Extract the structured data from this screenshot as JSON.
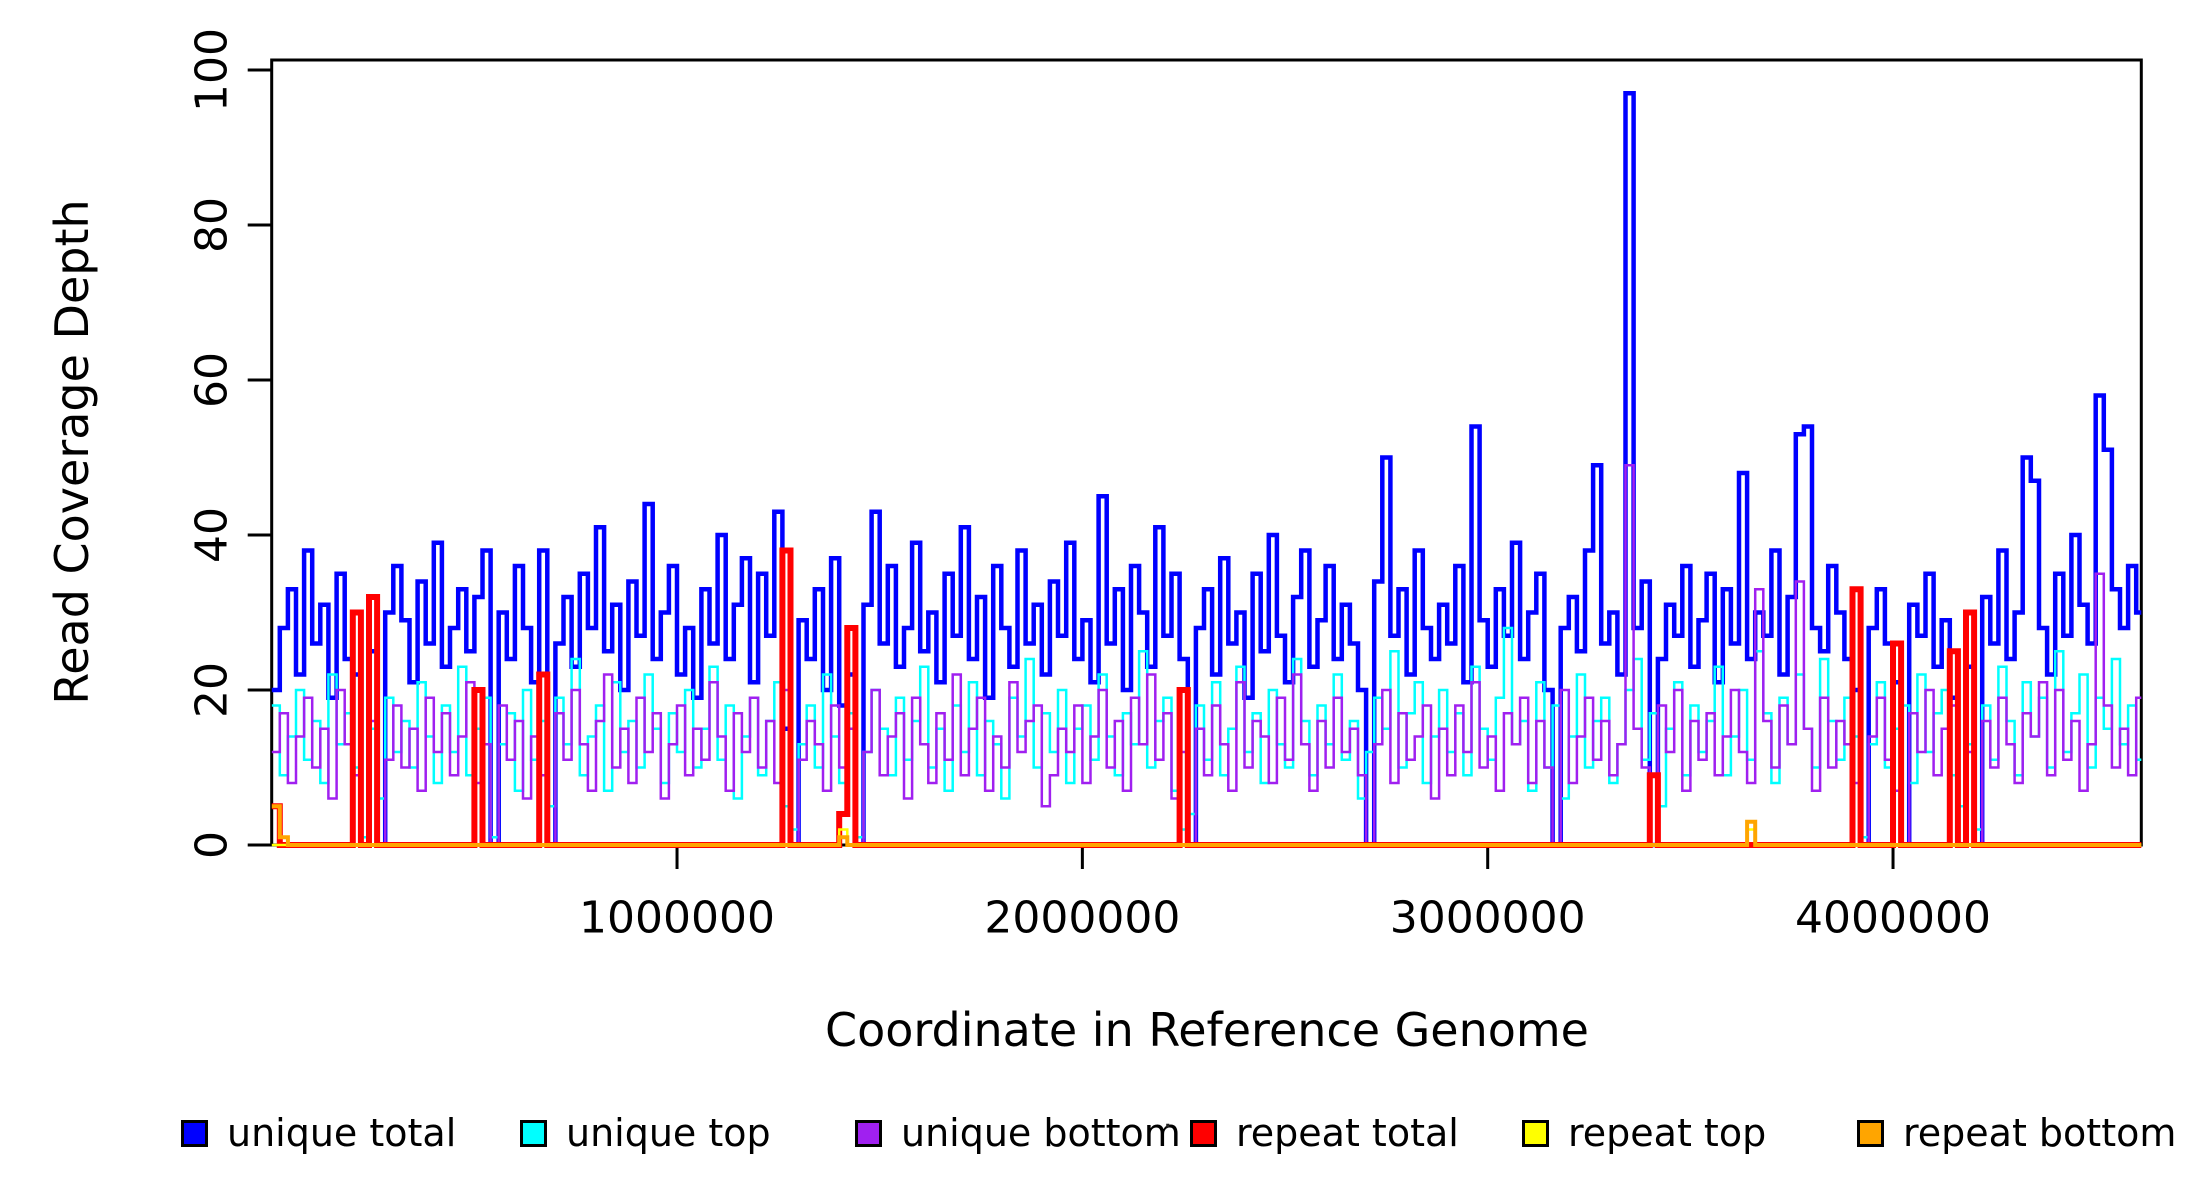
{
  "figure": {
    "background": "#FFFFFF"
  },
  "chart_data": {
    "type": "line",
    "subtype": "step-coverage-plot",
    "title": "",
    "xlabel": "Coordinate in Reference Genome",
    "ylabel": "Read Coverage Depth",
    "xlim": [
      0,
      4640000
    ],
    "ylim": [
      0,
      100
    ],
    "grid": "off",
    "box": "full",
    "x_ticks": [
      {
        "value": 1000000,
        "label": "1000000"
      },
      {
        "value": 2000000,
        "label": "2000000"
      },
      {
        "value": 3000000,
        "label": "3000000"
      },
      {
        "value": 4000000,
        "label": "4000000"
      }
    ],
    "y_ticks": [
      {
        "value": 0,
        "label": "0"
      },
      {
        "value": 20,
        "label": "20"
      },
      {
        "value": 40,
        "label": "40"
      },
      {
        "value": 60,
        "label": "60"
      },
      {
        "value": 80,
        "label": "80"
      },
      {
        "value": 100,
        "label": "100"
      }
    ],
    "bin_size": 20000,
    "x_start": 0,
    "series": [
      {
        "name": "unique total",
        "color": "#0000FF",
        "line_width": 4.5,
        "values": [
          20,
          28,
          33,
          22,
          38,
          26,
          31,
          19,
          35,
          24,
          22,
          0,
          25,
          0,
          30,
          36,
          29,
          21,
          34,
          26,
          39,
          23,
          28,
          33,
          25,
          32,
          38,
          0,
          30,
          24,
          36,
          28,
          21,
          38,
          0,
          26,
          32,
          23,
          35,
          28,
          41,
          25,
          31,
          20,
          34,
          27,
          44,
          24,
          30,
          36,
          22,
          28,
          19,
          33,
          26,
          40,
          24,
          31,
          37,
          21,
          35,
          27,
          43,
          15,
          0,
          29,
          24,
          33,
          20,
          37,
          18,
          22,
          0,
          31,
          43,
          26,
          36,
          23,
          28,
          39,
          25,
          30,
          21,
          35,
          27,
          41,
          24,
          32,
          19,
          36,
          28,
          23,
          38,
          26,
          31,
          22,
          34,
          27,
          39,
          24,
          29,
          21,
          45,
          26,
          33,
          20,
          36,
          30,
          23,
          41,
          27,
          35,
          24,
          0,
          28,
          33,
          22,
          37,
          26,
          30,
          19,
          35,
          25,
          40,
          27,
          21,
          32,
          38,
          23,
          29,
          36,
          24,
          31,
          26,
          20,
          0,
          34,
          50,
          27,
          33,
          22,
          38,
          28,
          24,
          31,
          26,
          36,
          21,
          54,
          29,
          23,
          33,
          27,
          39,
          24,
          30,
          35,
          20,
          0,
          28,
          32,
          25,
          38,
          49,
          26,
          30,
          22,
          97,
          28,
          34,
          0,
          24,
          31,
          27,
          36,
          23,
          29,
          35,
          21,
          33,
          26,
          48,
          24,
          30,
          27,
          38,
          22,
          32,
          53,
          54,
          28,
          25,
          36,
          30,
          24,
          20,
          0,
          28,
          33,
          26,
          21,
          0,
          31,
          27,
          35,
          23,
          29,
          19,
          0,
          23,
          0,
          32,
          26,
          38,
          24,
          30,
          50,
          47,
          28,
          22,
          35,
          27,
          40,
          31,
          26,
          58,
          51,
          33,
          28,
          36,
          30,
          25
        ]
      },
      {
        "name": "unique top",
        "color": "#00FFFF",
        "line_width": 2.5,
        "values": [
          18,
          9,
          14,
          20,
          11,
          16,
          8,
          22,
          13,
          17,
          10,
          1,
          15,
          6,
          19,
          12,
          16,
          10,
          21,
          14,
          8,
          18,
          12,
          23,
          9,
          15,
          19,
          1,
          13,
          17,
          7,
          20,
          11,
          16,
          5,
          19,
          13,
          24,
          9,
          14,
          18,
          7,
          21,
          12,
          16,
          10,
          22,
          15,
          8,
          17,
          12,
          20,
          10,
          15,
          23,
          11,
          18,
          6,
          14,
          19,
          9,
          16,
          21,
          5,
          2,
          13,
          18,
          10,
          22,
          14,
          8,
          17,
          1,
          12,
          20,
          15,
          9,
          19,
          11,
          16,
          23,
          10,
          15,
          7,
          18,
          12,
          21,
          9,
          16,
          13,
          6,
          19,
          14,
          24,
          10,
          17,
          12,
          20,
          8,
          15,
          18,
          11,
          22,
          14,
          9,
          17,
          13,
          25,
          10,
          16,
          19,
          7,
          2,
          4,
          18,
          11,
          21,
          9,
          15,
          23,
          12,
          17,
          8,
          20,
          13,
          10,
          24,
          16,
          9,
          18,
          13,
          22,
          11,
          16,
          6,
          12,
          19,
          15,
          25,
          10,
          17,
          21,
          8,
          14,
          20,
          12,
          17,
          9,
          23,
          15,
          11,
          19,
          28,
          13,
          16,
          7,
          21,
          10,
          18,
          6,
          14,
          22,
          10,
          16,
          19,
          8,
          13,
          20,
          24,
          11,
          17,
          5,
          15,
          21,
          9,
          18,
          12,
          16,
          23,
          9,
          14,
          20,
          11,
          25,
          17,
          8,
          19,
          13,
          22,
          15,
          10,
          24,
          16,
          11,
          19,
          14,
          1,
          13,
          21,
          10,
          15,
          18,
          8,
          22,
          12,
          17,
          20,
          9,
          5,
          13,
          2,
          18,
          11,
          23,
          16,
          9,
          21,
          14,
          19,
          10,
          25,
          12,
          17,
          22,
          10,
          19,
          15,
          24,
          13,
          18,
          11,
          16
        ]
      },
      {
        "name": "unique bottom",
        "color": "#A020F0",
        "line_width": 2.5,
        "values": [
          12,
          17,
          8,
          14,
          19,
          10,
          15,
          6,
          20,
          13,
          9,
          0,
          16,
          0,
          11,
          18,
          10,
          15,
          7,
          19,
          12,
          17,
          9,
          14,
          21,
          8,
          13,
          0,
          18,
          11,
          16,
          6,
          14,
          9,
          0,
          17,
          11,
          20,
          13,
          7,
          16,
          22,
          10,
          15,
          8,
          19,
          12,
          17,
          6,
          13,
          18,
          9,
          15,
          11,
          21,
          14,
          7,
          17,
          12,
          19,
          10,
          16,
          8,
          20,
          0,
          11,
          16,
          13,
          7,
          18,
          10,
          15,
          0,
          12,
          20,
          9,
          14,
          17,
          6,
          19,
          13,
          8,
          17,
          11,
          22,
          9,
          15,
          19,
          7,
          14,
          10,
          21,
          12,
          16,
          18,
          5,
          9,
          15,
          12,
          18,
          8,
          14,
          20,
          10,
          16,
          7,
          19,
          13,
          22,
          11,
          17,
          6,
          12,
          0,
          15,
          9,
          18,
          13,
          7,
          21,
          10,
          16,
          14,
          8,
          19,
          11,
          22,
          13,
          7,
          16,
          10,
          19,
          12,
          15,
          9,
          0,
          13,
          20,
          8,
          17,
          11,
          14,
          18,
          6,
          15,
          9,
          18,
          12,
          21,
          10,
          14,
          7,
          17,
          13,
          19,
          8,
          16,
          10,
          0,
          20,
          8,
          14,
          19,
          11,
          16,
          9,
          13,
          49,
          15,
          10,
          0,
          18,
          12,
          20,
          7,
          16,
          11,
          17,
          9,
          14,
          20,
          12,
          8,
          33,
          16,
          10,
          18,
          13,
          34,
          15,
          7,
          19,
          10,
          16,
          13,
          8,
          0,
          14,
          19,
          11,
          7,
          0,
          17,
          12,
          20,
          9,
          15,
          18,
          0,
          12,
          0,
          16,
          10,
          19,
          13,
          8,
          17,
          14,
          21,
          9,
          20,
          11,
          16,
          7,
          13,
          35,
          18,
          10,
          15,
          9,
          19,
          12
        ]
      },
      {
        "name": "repeat total",
        "color": "#FF0000",
        "line_width": 6,
        "length": 232,
        "default": 0,
        "sparse": {
          "0": 5,
          "10": 30,
          "12": 32,
          "25": 20,
          "33": 22,
          "63": 38,
          "70": 4,
          "71": 28,
          "112": 20,
          "170": 9,
          "195": 33,
          "200": 26,
          "207": 25,
          "209": 30
        }
      },
      {
        "name": "repeat top",
        "color": "#FFFF00",
        "line_width": 2.5,
        "length": 232,
        "default": 0,
        "sparse": {
          "70": 2,
          "182": 2
        }
      },
      {
        "name": "repeat bottom",
        "color": "#FFA500",
        "line_width": 4,
        "length": 232,
        "default": 0,
        "sparse": {
          "0": 5,
          "1": 1,
          "70": 1,
          "182": 3
        }
      }
    ],
    "legend": {
      "position": "bottom",
      "stray_mark": "·",
      "items": [
        {
          "label": "unique total",
          "color": "#0000FF"
        },
        {
          "label": "unique top",
          "color": "#00FFFF"
        },
        {
          "label": "unique bottom",
          "color": "#A020F0"
        },
        {
          "label": "repeat total",
          "color": "#FF0000"
        },
        {
          "label": "repeat top",
          "color": "#FFFF00"
        },
        {
          "label": "repeat bottom",
          "color": "#FFA500"
        }
      ]
    }
  }
}
